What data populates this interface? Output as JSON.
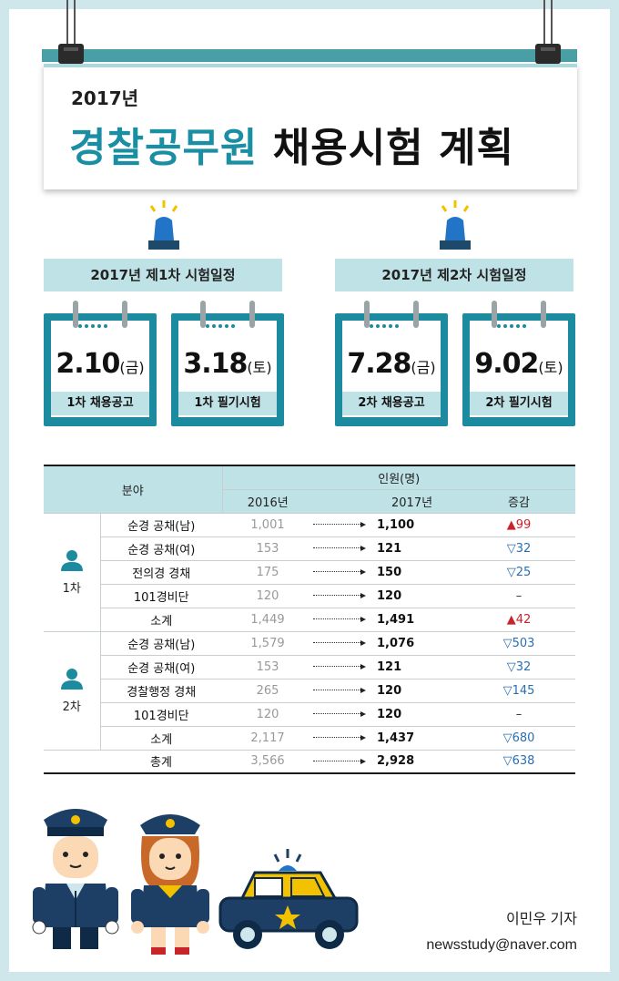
{
  "header": {
    "year": "2017년",
    "title_accent": "경찰공무원",
    "title_rest": "채용시험 계획"
  },
  "schedule": [
    {
      "label": "2017년 제1차 시험일정",
      "items": [
        {
          "date": "2.10",
          "dow": "(금)",
          "label": "1차 채용공고"
        },
        {
          "date": "3.18",
          "dow": "(토)",
          "label": "1차 필기시험"
        }
      ]
    },
    {
      "label": "2017년 제2차 시험일정",
      "items": [
        {
          "date": "7.28",
          "dow": "(금)",
          "label": "2차 채용공고"
        },
        {
          "date": "9.02",
          "dow": "(토)",
          "label": "2차 필기시험"
        }
      ]
    }
  ],
  "table": {
    "head_field": "분야",
    "head_people": "인원(명)",
    "head_2016": "2016년",
    "head_2017": "2017년",
    "head_change": "증감",
    "groups": [
      {
        "name": "1차",
        "rows": [
          {
            "field": "순경 공채(남)",
            "y2016": "1,001",
            "y2017": "1,100",
            "change": "▲99",
            "dir": "up"
          },
          {
            "field": "순경 공채(여)",
            "y2016": "153",
            "y2017": "121",
            "change": "▽32",
            "dir": "down"
          },
          {
            "field": "전의경 경채",
            "y2016": "175",
            "y2017": "150",
            "change": "▽25",
            "dir": "down"
          },
          {
            "field": "101경비단",
            "y2016": "120",
            "y2017": "120",
            "change": "–",
            "dir": "flat"
          },
          {
            "field": "소계",
            "y2016": "1,449",
            "y2017": "1,491",
            "change": "▲42",
            "dir": "up"
          }
        ]
      },
      {
        "name": "2차",
        "rows": [
          {
            "field": "순경 공채(남)",
            "y2016": "1,579",
            "y2017": "1,076",
            "change": "▽503",
            "dir": "down"
          },
          {
            "field": "순경 공채(여)",
            "y2016": "153",
            "y2017": "121",
            "change": "▽32",
            "dir": "down"
          },
          {
            "field": "경찰행정 경채",
            "y2016": "265",
            "y2017": "120",
            "change": "▽145",
            "dir": "down"
          },
          {
            "field": "101경비단",
            "y2016": "120",
            "y2017": "120",
            "change": "–",
            "dir": "flat"
          },
          {
            "field": "소계",
            "y2016": "2,117",
            "y2017": "1,437",
            "change": "▽680",
            "dir": "down"
          }
        ]
      }
    ],
    "total": {
      "field": "총계",
      "y2016": "3,566",
      "y2017": "2,928",
      "change": "▽638",
      "dir": "down"
    }
  },
  "byline": {
    "author": "이민우 기자",
    "email": "newsstudy@naver.com"
  },
  "colors": {
    "accent": "#1a8ea3",
    "light": "#bfe2e6",
    "up": "#c8252b",
    "down": "#2a6fb0"
  },
  "icons": [
    "binder-clip-icon",
    "police-beacon-icon",
    "calendar-icon",
    "person-icon",
    "police-officer-male-icon",
    "police-officer-female-icon",
    "police-car-icon"
  ]
}
